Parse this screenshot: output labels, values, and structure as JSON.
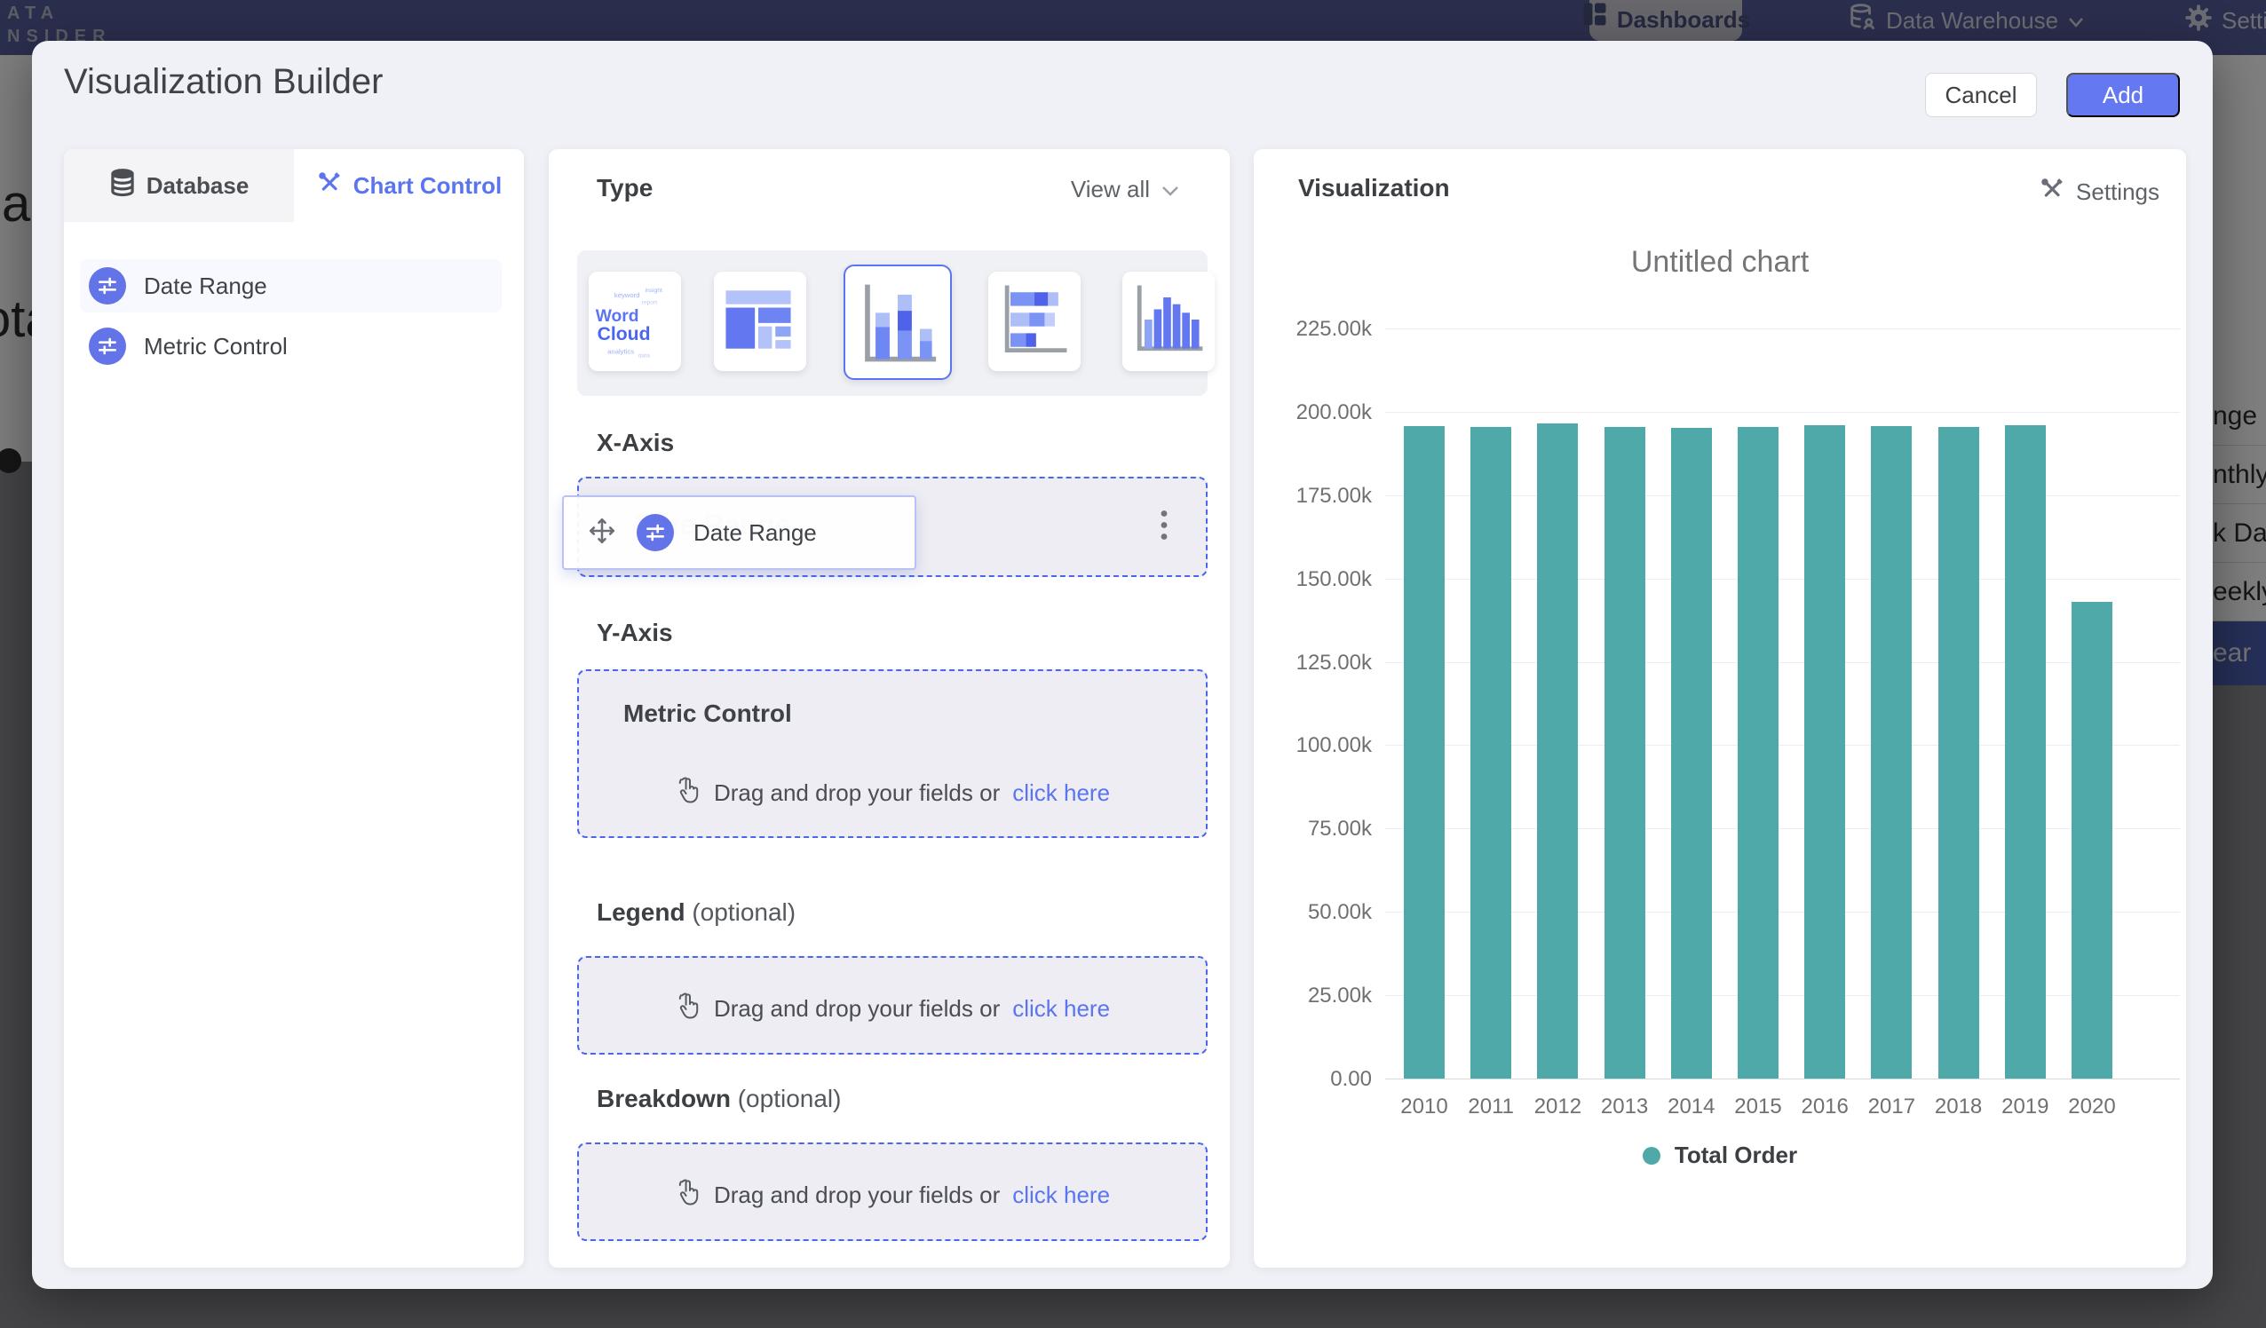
{
  "navbar": {
    "logo_line1": "ATA",
    "logo_line2": "NSIDER",
    "items": [
      {
        "label": "Dashboards",
        "icon": "dashboard-grid-icon",
        "active": true
      },
      {
        "label": "Data Warehouse",
        "icon": "database-user-icon",
        "has_chevron": true
      },
      {
        "label": "Settings",
        "icon": "gear-icon"
      }
    ]
  },
  "background_fragments": {
    "left_text_1": "al",
    "left_text_2": "ota",
    "right_menu_items": [
      {
        "label": "nge",
        "selected": false
      },
      {
        "label": "nthly",
        "selected": false
      },
      {
        "label": "k Date",
        "selected": false
      },
      {
        "label": "eekly",
        "selected": false
      },
      {
        "label": "ear",
        "selected": true
      }
    ]
  },
  "modal": {
    "title": "Visualization Builder",
    "cancel_label": "Cancel",
    "add_label": "Add",
    "left_panel": {
      "tabs": [
        {
          "label": "Database",
          "icon": "database-icon",
          "active": false
        },
        {
          "label": "Chart Control",
          "icon": "tools-icon",
          "active": true
        }
      ],
      "fields": [
        {
          "label": "Date Range",
          "icon": "sliders-icon"
        },
        {
          "label": "Metric Control",
          "icon": "sliders-icon"
        }
      ]
    },
    "builder": {
      "type_label": "Type",
      "view_all_label": "View all",
      "type_options": [
        {
          "id": "word-cloud",
          "name": "Word Cloud",
          "selected": false,
          "words": [
            "Word",
            "Cloud",
            "analytics",
            "keyword",
            "data",
            "insight",
            "report"
          ]
        },
        {
          "id": "treemap",
          "name": "Treemap",
          "selected": false
        },
        {
          "id": "stacked-column",
          "name": "Stacked Column",
          "selected": true
        },
        {
          "id": "stacked-bar",
          "name": "Stacked Bar",
          "selected": false
        },
        {
          "id": "column",
          "name": "Column",
          "selected": false
        }
      ],
      "x_axis": {
        "heading": "X-Axis",
        "chip_label": "Date Range",
        "ghost_label": "Date Range"
      },
      "y_axis": {
        "heading": "Y-Axis",
        "zone_title": "Metric Control",
        "drop_text": "Drag and drop your fields or",
        "link_text": "click here"
      },
      "legend_section": {
        "heading": "Legend",
        "optional": "(optional)",
        "drop_text": "Drag and drop your fields or",
        "link_text": "click here"
      },
      "breakdown_section": {
        "heading": "Breakdown",
        "optional": "(optional)",
        "drop_text": "Drag and drop your fields or",
        "link_text": "click here"
      }
    },
    "visualization": {
      "heading": "Visualization",
      "settings_label": "Settings"
    }
  },
  "chart_data": {
    "type": "bar",
    "title": "Untitled chart",
    "categories": [
      "2010",
      "2011",
      "2012",
      "2013",
      "2014",
      "2015",
      "2016",
      "2017",
      "2018",
      "2019",
      "2020"
    ],
    "series": [
      {
        "name": "Total Order",
        "color": "#4fa9a9",
        "values": [
          195600,
          195400,
          196400,
          195500,
          195300,
          195500,
          196000,
          195600,
          195400,
          196000,
          143000
        ]
      }
    ],
    "xlabel": "",
    "ylabel": "",
    "ylim": [
      0,
      225000
    ],
    "ytick_step": 25000,
    "ytick_labels_top_down": [
      "225.00k",
      "200.00k",
      "175.00k",
      "150.00k",
      "125.00k",
      "100.00k",
      "75.00k",
      "50.00k",
      "25.00k",
      "0.00"
    ],
    "grid": true,
    "legend_position": "bottom"
  },
  "colors": {
    "accent": "#5b74f0",
    "add_button": "#6478f2",
    "bar_teal": "#4fa9a9",
    "dropzone_border": "#4a66ee",
    "selected_menu_row": "#4c5fb0"
  }
}
